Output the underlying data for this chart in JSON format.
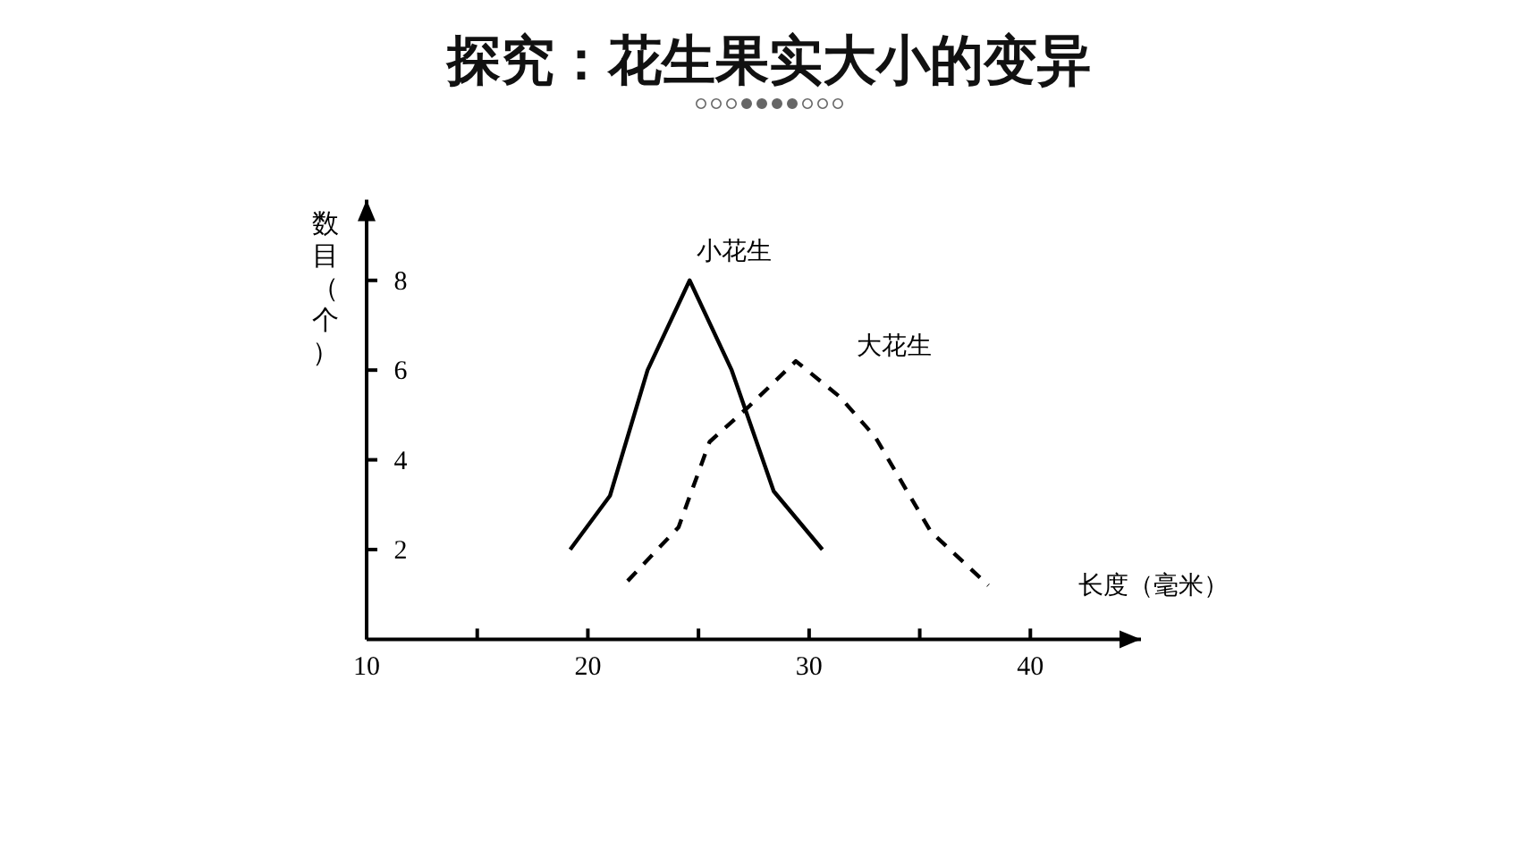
{
  "chart_data": {
    "type": "line",
    "title": "探究：花生果实大小的变异",
    "xlabel": "长度（毫米）",
    "ylabel": "数目（个）",
    "xlim": [
      10,
      45
    ],
    "ylim": [
      0,
      9.8
    ],
    "xticks": [
      10,
      {
        "value": 15,
        "label": null
      },
      20,
      {
        "value": 25,
        "label": null
      },
      30,
      {
        "value": 35,
        "label": null
      },
      40
    ],
    "yticks": [
      2,
      4,
      6,
      8
    ],
    "series": [
      {
        "name": "小花生",
        "color": "#000000",
        "line_style": "solid",
        "x": [
          19.2,
          21.0,
          22.7,
          24.6,
          26.5,
          28.4,
          30.6
        ],
        "values": [
          2,
          3.2,
          6,
          8,
          6,
          3.3,
          2
        ]
      },
      {
        "name": "大花生",
        "color": "#000000",
        "line_style": "dashed",
        "x": [
          21.8,
          24.1,
          25.5,
          27.3,
          29.4,
          31.4,
          33.0,
          35.5,
          38.1
        ],
        "values": [
          1.3,
          2.5,
          4.4,
          5.2,
          6.2,
          5.4,
          4.5,
          2.4,
          1.2
        ]
      }
    ]
  }
}
